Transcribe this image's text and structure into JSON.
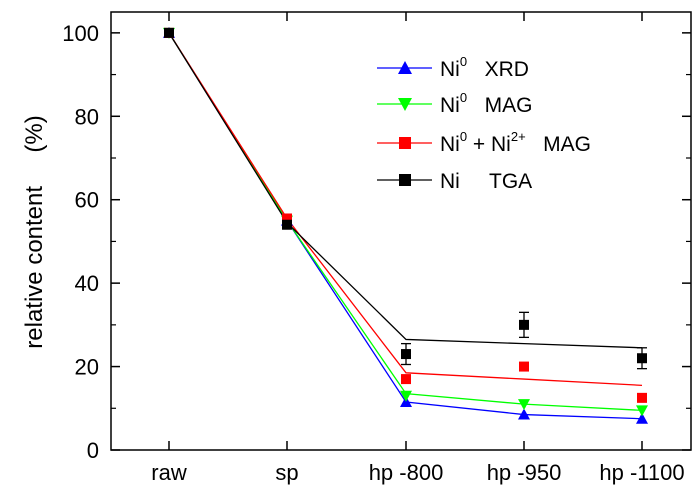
{
  "chart_data": {
    "type": "line",
    "categories": [
      "raw",
      "sp",
      "hp -800",
      "hp -950",
      "hp -1100"
    ],
    "ylabel": "relative content     (%)",
    "ylim": [
      0,
      105
    ],
    "yticks": [
      0,
      20,
      40,
      60,
      80,
      100
    ],
    "grid": false,
    "legend_position": "top-right",
    "series": [
      {
        "name": "Ni0 XRD",
        "legend": {
          "base": "Ni",
          "sup": "0",
          "rest": "XRD"
        },
        "marker": "triangle-up",
        "color": "#0000ff",
        "line_color": "#0000ff",
        "line": [
          100,
          55,
          11.5,
          8.5,
          7.5
        ],
        "points": [
          100,
          55,
          11.5,
          8.5,
          7.5
        ]
      },
      {
        "name": "Ni0 MAG",
        "legend": {
          "base": "Ni",
          "sup": "0",
          "rest": "MAG"
        },
        "marker": "triangle-down",
        "color": "#00ff00",
        "line_color": "#00ff00",
        "line": [
          100,
          55,
          13.5,
          11,
          9.5
        ],
        "points": [
          100,
          55,
          13,
          11,
          9.5
        ]
      },
      {
        "name": "Ni0 + Ni2+ MAG",
        "legend": {
          "base": "Ni",
          "sup": "0",
          "mid": " + Ni",
          "sup2": "2+",
          "rest": "MAG"
        },
        "marker": "square",
        "color": "#ff0000",
        "line_color": "#ff0000",
        "line": [
          100,
          55.5,
          18.5,
          17,
          15.5
        ],
        "points": [
          100,
          55.5,
          17,
          20,
          12.5
        ]
      },
      {
        "name": "Ni TGA",
        "legend": {
          "base": "Ni",
          "rest": "TGA"
        },
        "marker": "square",
        "color": "#000000",
        "line_color": "#000000",
        "line": [
          100,
          54.5,
          26.5,
          25.5,
          24.5
        ],
        "points": [
          100,
          54,
          23,
          30,
          22
        ],
        "errors": [
          0,
          0,
          2.5,
          3,
          2.5
        ]
      }
    ]
  }
}
